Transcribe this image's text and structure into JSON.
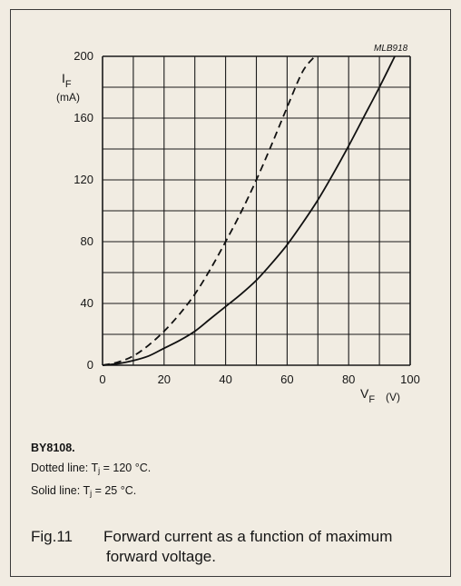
{
  "chart_data": {
    "type": "line",
    "figure_code": "MLB918",
    "y_axis": {
      "symbol": "I",
      "subscript": "F",
      "unit": "(mA)",
      "ylim": [
        0,
        200
      ],
      "ticks": [
        0,
        40,
        80,
        120,
        160,
        200
      ]
    },
    "x_axis": {
      "symbol": "V",
      "subscript": "F",
      "unit": "(V)",
      "xlim": [
        0,
        100
      ],
      "ticks": [
        0,
        20,
        40,
        60,
        80,
        100
      ]
    },
    "grid": true,
    "series": [
      {
        "style": "dashed",
        "x": [
          0,
          5,
          10,
          15,
          20,
          25,
          30,
          35,
          40,
          45,
          50,
          55,
          60,
          65,
          69
        ],
        "y": [
          0,
          2,
          6,
          13,
          22,
          33,
          46,
          62,
          80,
          99,
          120,
          143,
          167,
          190,
          200
        ]
      },
      {
        "style": "solid",
        "x": [
          0,
          5,
          10,
          15,
          20,
          25,
          30,
          35,
          40,
          45,
          50,
          55,
          60,
          65,
          70,
          75,
          80,
          85,
          90,
          95
        ],
        "y": [
          0,
          1,
          3,
          6,
          11,
          16,
          22,
          30,
          38,
          46,
          55,
          66,
          78,
          92,
          107,
          124,
          142,
          161,
          180,
          200
        ]
      }
    ]
  },
  "notes": {
    "device": "BY8108.",
    "dotted_prefix": "Dotted line: T",
    "dotted_sub": "j",
    "dotted_suffix": " = 120 °C.",
    "solid_prefix": "Solid line: T",
    "solid_sub": "j",
    "solid_suffix": " = 25 °C."
  },
  "caption": {
    "fig_label": "Fig.11",
    "line1": "Forward current as a function of maximum",
    "line2": "forward voltage."
  }
}
